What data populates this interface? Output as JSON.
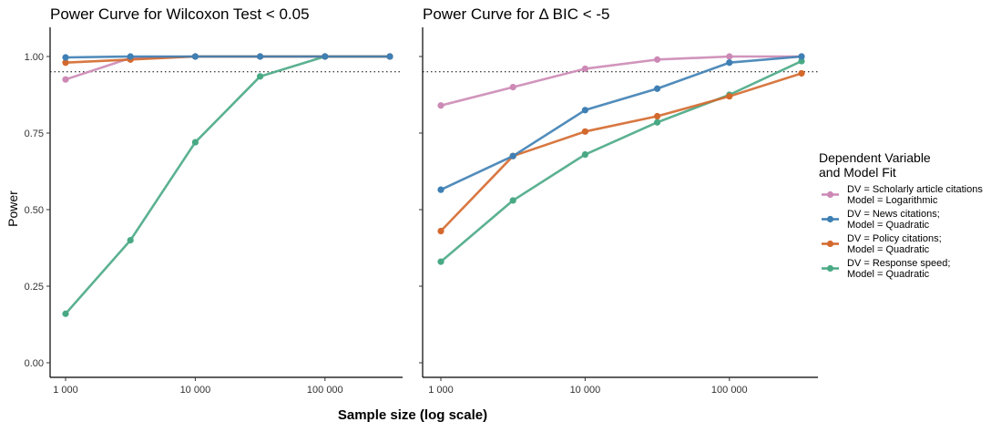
{
  "chart_data": {
    "type": "line",
    "xlabel": "Sample size (log scale)",
    "ylabel": "Power",
    "x_scale": "log",
    "x": [
      1000,
      3162,
      10000,
      31623,
      100000,
      316228
    ],
    "x_ticks": [
      1000,
      10000,
      100000
    ],
    "x_tick_labels": [
      "1 000",
      "10 000",
      "100 000"
    ],
    "ylim": [
      0,
      1
    ],
    "y_ticks": [
      0,
      0.25,
      0.5,
      0.75,
      1
    ],
    "y_tick_labels": [
      "0.00",
      "0.25",
      "0.50",
      "0.75",
      "1.00"
    ],
    "grid": false,
    "legend": {
      "title_lines": [
        "Dependent Variable",
        "and Model Fit"
      ],
      "placement": "right",
      "entries": [
        {
          "lines": [
            "DV = Scholarly article citations",
            "Model = Logarithmic"
          ],
          "color": "#CC89B5"
        },
        {
          "lines": [
            "DV = News citations;",
            "Model = Quadratic"
          ],
          "color": "#3E7FB4"
        },
        {
          "lines": [
            "DV = Policy citations;",
            "Model = Quadratic"
          ],
          "color": "#D4692E"
        },
        {
          "lines": [
            "DV = Response speed;",
            "Model = Quadratic"
          ],
          "color": "#49A985"
        }
      ]
    },
    "panels": [
      {
        "title": "Power Curve for Wilcoxon Test < 0.05",
        "reference_line": 0.95,
        "series": [
          {
            "color": "#CC89B5",
            "values": [
              0.925,
              0.995,
              1.0,
              1.0,
              1.0,
              1.0
            ]
          },
          {
            "color": "#49A985",
            "values": [
              0.16,
              0.4,
              0.72,
              0.935,
              1.0,
              1.0
            ]
          },
          {
            "color": "#D4692E",
            "values": [
              0.98,
              0.99,
              1.0,
              1.0,
              1.0,
              1.0
            ]
          },
          {
            "color": "#3E7FB4",
            "values": [
              0.997,
              1.0,
              1.0,
              1.0,
              1.0,
              1.0
            ]
          }
        ]
      },
      {
        "title": "Power Curve for Δ BIC < -5",
        "reference_line": 0.95,
        "series": [
          {
            "color": "#CC89B5",
            "values": [
              0.84,
              0.9,
              0.96,
              0.99,
              1.0,
              1.0
            ]
          },
          {
            "color": "#49A985",
            "values": [
              0.33,
              0.53,
              0.68,
              0.785,
              0.875,
              0.985
            ]
          },
          {
            "color": "#D4692E",
            "values": [
              0.43,
              0.675,
              0.755,
              0.805,
              0.87,
              0.945
            ]
          },
          {
            "color": "#3E7FB4",
            "values": [
              0.565,
              0.675,
              0.825,
              0.895,
              0.98,
              1.0
            ]
          }
        ]
      }
    ]
  }
}
